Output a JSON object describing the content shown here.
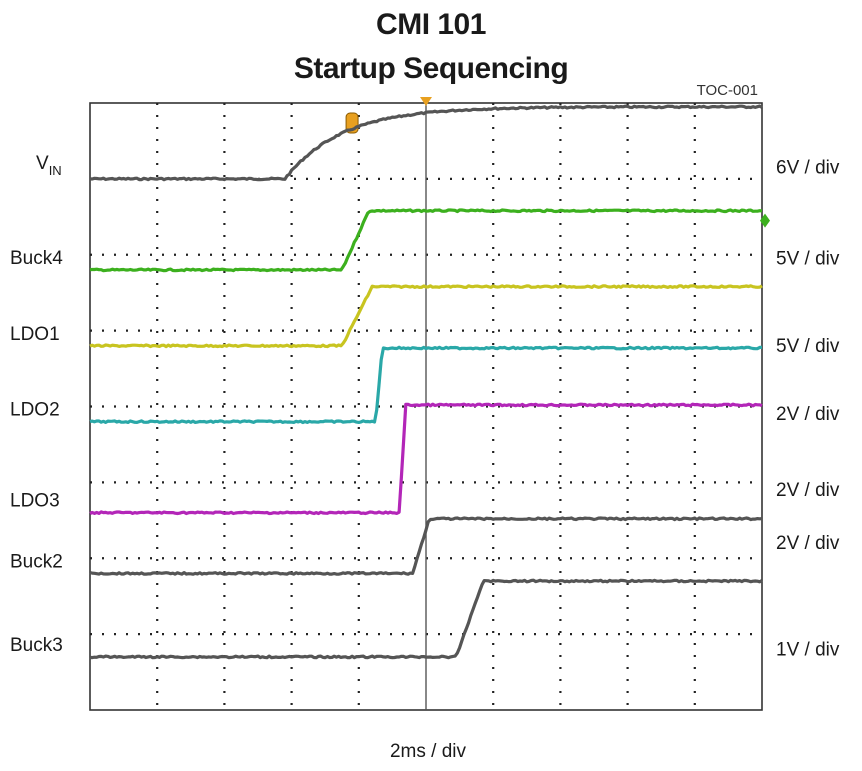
{
  "title": "CMI 101",
  "subtitle": "Startup Sequencing",
  "chart_data": {
    "type": "line",
    "tag": "TOC-001",
    "xlabel": "2ms / div",
    "x_divisions": 10,
    "y_divisions": 8,
    "trigger_div": 5,
    "series": [
      {
        "name": "V",
        "name_sub": "IN",
        "color": "#555555",
        "scale": "6V / div",
        "ground_div": 1.0,
        "start_div": 2.9,
        "rise": "rc",
        "tau_div": 0.85,
        "amplitude_div": 0.95
      },
      {
        "name": "Buck4",
        "color": "#3cb01e",
        "scale": "5V / div",
        "ground_div": 2.2,
        "start_div": 3.75,
        "end_div": 4.15,
        "amplitude_div": 0.78
      },
      {
        "name": "LDO1",
        "color": "#c8c420",
        "scale": "5V / div",
        "ground_div": 3.2,
        "start_div": 3.75,
        "end_div": 4.2,
        "amplitude_div": 0.78
      },
      {
        "name": "LDO2",
        "color": "#2aa8a8",
        "scale": "2V / div",
        "ground_div": 4.2,
        "start_div": 4.25,
        "end_div": 4.35,
        "amplitude_div": 0.97
      },
      {
        "name": "LDO3",
        "color": "#b326b8",
        "scale": "2V / div",
        "ground_div": 5.4,
        "start_div": 4.6,
        "end_div": 4.7,
        "amplitude_div": 1.42
      },
      {
        "name": "Buck2",
        "color": "#555555",
        "scale": "2V / div",
        "ground_div": 6.2,
        "start_div": 4.8,
        "end_div": 5.05,
        "amplitude_div": 0.72
      },
      {
        "name": "Buck3",
        "color": "#555555",
        "scale": "1V / div",
        "ground_div": 7.3,
        "start_div": 5.45,
        "end_div": 5.85,
        "amplitude_div": 1.0
      }
    ],
    "scale_labels": [
      "6V / div",
      "5V / div",
      "5V / div",
      "2V / div",
      "2V / div",
      "2V / div",
      "1V / div"
    ],
    "grid": true
  }
}
